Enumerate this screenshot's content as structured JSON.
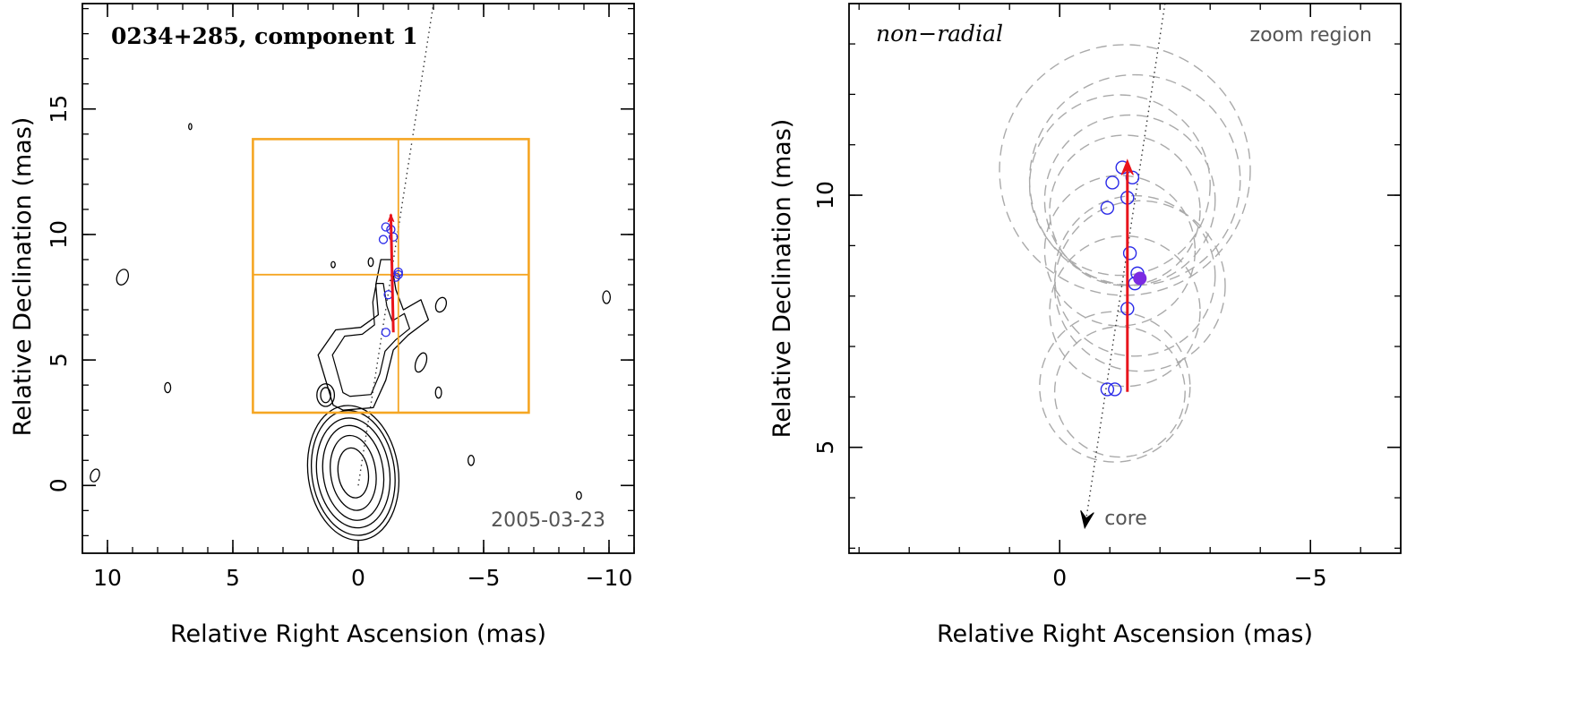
{
  "chart_data": [
    {
      "type": "scatter",
      "title": "0234+285, component 1",
      "xlabel": "Relative Right Ascension (mas)",
      "ylabel": "Relative Declination (mas)",
      "xlim": [
        11,
        -11
      ],
      "ylim": [
        -2.7,
        19.2
      ],
      "xticks": [
        10,
        5,
        0,
        -5,
        -10
      ],
      "xtick_labels": [
        "10",
        "5",
        "0",
        "−5",
        "−10"
      ],
      "yticks": [
        0,
        5,
        10,
        15
      ],
      "ytick_labels": [
        "0",
        "5",
        "10",
        "15"
      ],
      "epoch_label": "2005-03-23",
      "colors": {
        "box": "#f5a623",
        "vector": "#e8141c",
        "points": "#2a2ae8",
        "contour": "#000000",
        "track": "#333333"
      },
      "zoom_box": {
        "x": [
          4.2,
          -6.8
        ],
        "y": [
          2.9,
          13.8
        ],
        "cross_x": -1.6,
        "cross_y": 8.4
      },
      "points": {
        "x": [
          -1.1,
          -1.3,
          -1.4,
          -1.0,
          -1.6,
          -1.5,
          -1.6,
          -1.2,
          -1.1
        ],
        "y": [
          10.3,
          10.2,
          9.9,
          9.8,
          8.5,
          8.3,
          8.4,
          7.6,
          6.1
        ]
      },
      "vector": {
        "from": [
          -1.4,
          6.1
        ],
        "to": [
          -1.3,
          10.8
        ]
      },
      "track": {
        "from": [
          0,
          0
        ],
        "to": [
          -3.0,
          19.2
        ]
      },
      "contours": [
        {
          "center": [
            0.2,
            0.5
          ],
          "rx": [
            0.6,
            0.9,
            1.2,
            1.45,
            1.65,
            1.8
          ],
          "ry": [
            1.0,
            1.5,
            1.9,
            2.2,
            2.5,
            2.7
          ],
          "angle": -8
        },
        {
          "center": [
            1.3,
            3.6
          ],
          "rx": [
            0.2,
            0.35
          ],
          "ry": [
            0.3,
            0.45
          ],
          "angle": 0
        },
        {
          "center": [
            -2.5,
            4.9
          ],
          "rx": [
            0.2
          ],
          "ry": [
            0.4
          ],
          "angle": 20
        },
        {
          "center": [
            -3.3,
            7.2
          ],
          "rx": [
            0.2
          ],
          "ry": [
            0.3
          ],
          "angle": 20
        },
        {
          "center": [
            -3.2,
            3.7
          ],
          "rx": [
            0.12
          ],
          "ry": [
            0.22
          ],
          "angle": 0
        },
        {
          "center": [
            9.4,
            8.3
          ],
          "rx": [
            0.22
          ],
          "ry": [
            0.32
          ],
          "angle": 20
        },
        {
          "center": [
            7.6,
            3.9
          ],
          "rx": [
            0.12
          ],
          "ry": [
            0.2
          ],
          "angle": 0
        },
        {
          "center": [
            -9.9,
            7.5
          ],
          "rx": [
            0.15
          ],
          "ry": [
            0.25
          ],
          "angle": 0
        },
        {
          "center": [
            10.5,
            0.4
          ],
          "rx": [
            0.17
          ],
          "ry": [
            0.26
          ],
          "angle": 20
        },
        {
          "center": [
            -8.8,
            -0.4
          ],
          "rx": [
            0.1
          ],
          "ry": [
            0.15
          ],
          "angle": 0
        },
        {
          "center": [
            -4.5,
            1.0
          ],
          "rx": [
            0.12
          ],
          "ry": [
            0.2
          ],
          "angle": 0
        },
        {
          "center": [
            1.0,
            8.8
          ],
          "rx": [
            0.08
          ],
          "ry": [
            0.12
          ],
          "angle": 0
        },
        {
          "center": [
            -0.5,
            8.9
          ],
          "rx": [
            0.1
          ],
          "ry": [
            0.17
          ],
          "angle": 0
        },
        {
          "center": [
            6.7,
            14.3
          ],
          "rx": [
            0.06
          ],
          "ry": [
            0.12
          ],
          "angle": 0
        }
      ],
      "jet_outline": [
        [
          1.0,
          3.2
        ],
        [
          0.6,
          3.0
        ],
        [
          -0.6,
          3.1
        ],
        [
          -1.1,
          4.2
        ],
        [
          -1.4,
          5.4
        ],
        [
          -2.0,
          6.0
        ],
        [
          -2.8,
          6.6
        ],
        [
          -2.5,
          7.4
        ],
        [
          -1.8,
          7.0
        ],
        [
          -1.5,
          7.8
        ],
        [
          -1.3,
          9.0
        ],
        [
          -0.9,
          9.0
        ],
        [
          -0.7,
          8.0
        ],
        [
          -0.8,
          6.8
        ],
        [
          -0.1,
          6.3
        ],
        [
          0.9,
          6.2
        ],
        [
          1.6,
          5.2
        ],
        [
          1.3,
          4.2
        ],
        [
          1.0,
          3.2
        ]
      ]
    },
    {
      "type": "scatter",
      "title": "non−radial",
      "region_label": "zoom region",
      "xlabel": "Relative Right Ascension (mas)",
      "ylabel": "Relative Declination (mas)",
      "xlim": [
        4.2,
        -6.8
      ],
      "ylim": [
        2.9,
        13.8
      ],
      "xticks": [
        0,
        -5
      ],
      "xtick_labels": [
        "0",
        "−5"
      ],
      "yticks": [
        5,
        10
      ],
      "ytick_labels": [
        "5",
        "10"
      ],
      "core_label": "core",
      "colors": {
        "vector": "#e8141c",
        "points": "#2a2ae8",
        "filled": "#7b2be2",
        "circles": "#aaaaaa",
        "track": "#333333"
      },
      "points": {
        "x": [
          -1.25,
          -1.45,
          -1.05,
          -1.35,
          -0.95,
          -1.4,
          -1.55,
          -1.5,
          -1.35,
          -0.95,
          -1.1
        ],
        "y": [
          10.55,
          10.35,
          10.25,
          9.95,
          9.75,
          8.85,
          8.45,
          8.25,
          7.75,
          6.15,
          6.15
        ]
      },
      "filled_point": {
        "x": -1.6,
        "y": 8.35
      },
      "vector": {
        "from": [
          -1.35,
          6.1
        ],
        "to": [
          -1.35,
          10.7
        ]
      },
      "track": {
        "from": [
          -0.5,
          3.4
        ],
        "to": [
          -2.1,
          13.8
        ]
      },
      "uncertainty_circles": [
        {
          "x": -1.3,
          "y": 10.5,
          "r": 2.5
        },
        {
          "x": -1.5,
          "y": 10.3,
          "r": 2.1
        },
        {
          "x": -1.2,
          "y": 10.2,
          "r": 1.8
        },
        {
          "x": -1.4,
          "y": 9.9,
          "r": 1.7
        },
        {
          "x": -1.3,
          "y": 9.7,
          "r": 1.5
        },
        {
          "x": -1.2,
          "y": 8.9,
          "r": 1.5
        },
        {
          "x": -1.5,
          "y": 8.4,
          "r": 1.6
        },
        {
          "x": -1.6,
          "y": 8.2,
          "r": 1.7
        },
        {
          "x": -1.3,
          "y": 7.7,
          "r": 1.5
        },
        {
          "x": -1.1,
          "y": 6.2,
          "r": 1.5
        },
        {
          "x": -1.2,
          "y": 6.1,
          "r": 1.3
        }
      ]
    }
  ]
}
